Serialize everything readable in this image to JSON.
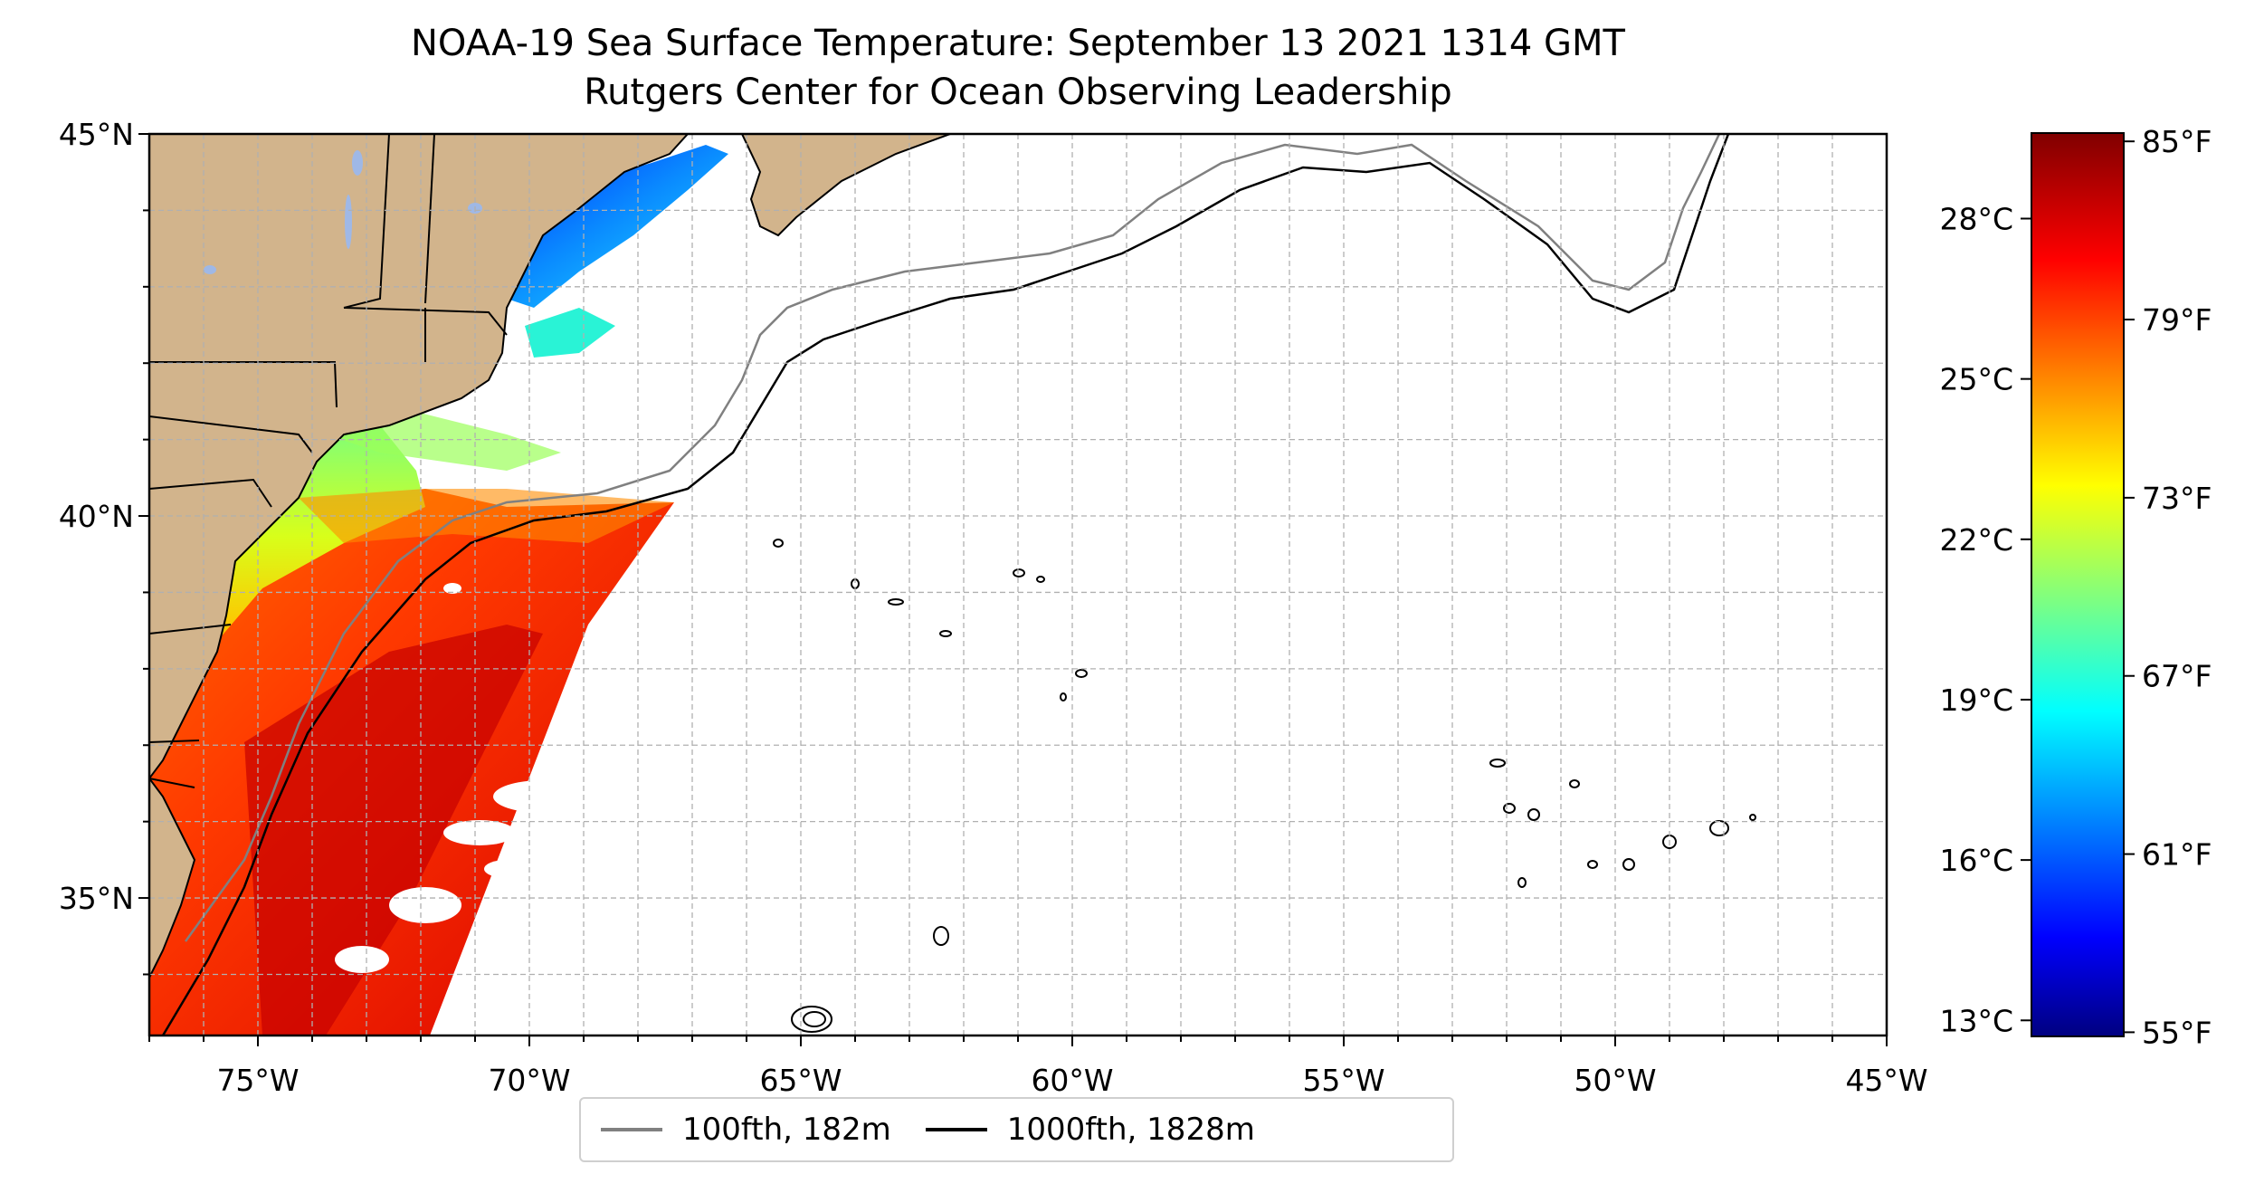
{
  "map": {
    "title_line1": "NOAA-19 Sea Surface Temperature: September 13 2021 1314 GMT",
    "title_line2": "Rutgers Center for Ocean Observing Leadership",
    "extent": {
      "lon_min": -77,
      "lon_max": -45,
      "lat_min": 33.2,
      "lat_max": 45
    },
    "lon_ticks": [
      {
        "value": -75,
        "label": "75°W"
      },
      {
        "value": -70,
        "label": "70°W"
      },
      {
        "value": -65,
        "label": "65°W"
      },
      {
        "value": -60,
        "label": "60°W"
      },
      {
        "value": -55,
        "label": "55°W"
      },
      {
        "value": -50,
        "label": "50°W"
      },
      {
        "value": -45,
        "label": "45°W"
      }
    ],
    "lat_ticks": [
      {
        "value": 45,
        "label": "45°N"
      },
      {
        "value": 40,
        "label": "40°N"
      },
      {
        "value": 35,
        "label": "35°N"
      }
    ],
    "land_color": "#d2b48c",
    "lake_color": "#9fb8e6"
  },
  "colorbar": {
    "colormap": "jet",
    "range_c": [
      12.7,
      29.6
    ],
    "celsius_ticks": [
      {
        "value": 28,
        "label": "28°C"
      },
      {
        "value": 25,
        "label": "25°C"
      },
      {
        "value": 22,
        "label": "22°C"
      },
      {
        "value": 19,
        "label": "19°C"
      },
      {
        "value": 16,
        "label": "16°C"
      },
      {
        "value": 13,
        "label": "13°C"
      }
    ],
    "fahrenheit_ticks": [
      {
        "value": 85,
        "label": "85°F"
      },
      {
        "value": 79,
        "label": "79°F"
      },
      {
        "value": 73,
        "label": "73°F"
      },
      {
        "value": 67,
        "label": "67°F"
      },
      {
        "value": 61,
        "label": "61°F"
      },
      {
        "value": 55,
        "label": "55°F"
      }
    ]
  },
  "legend": {
    "items": [
      {
        "label": "100fth, 182m",
        "color": "#808080"
      },
      {
        "label": "1000fth, 1828m",
        "color": "#000000"
      }
    ]
  }
}
